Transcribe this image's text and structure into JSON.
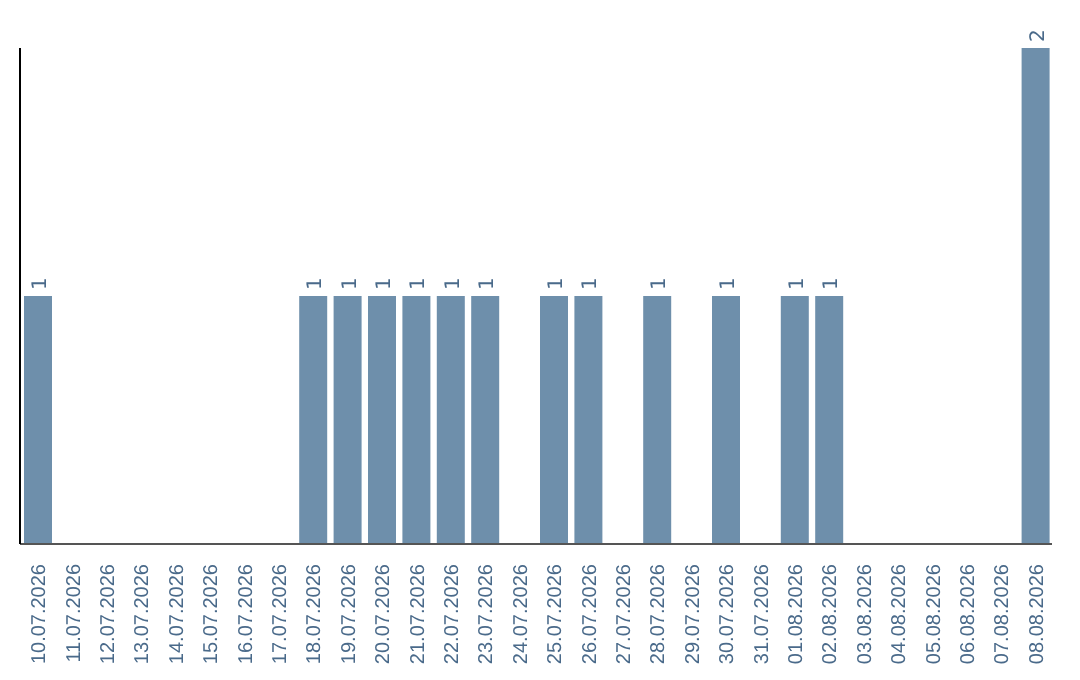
{
  "chart_data": {
    "type": "bar",
    "categories": [
      "10.07.2026",
      "11.07.2026",
      "12.07.2026",
      "13.07.2026",
      "14.07.2026",
      "15.07.2026",
      "16.07.2026",
      "17.07.2026",
      "18.07.2026",
      "19.07.2026",
      "20.07.2026",
      "21.07.2026",
      "22.07.2026",
      "23.07.2026",
      "24.07.2026",
      "25.07.2026",
      "26.07.2026",
      "27.07.2026",
      "28.07.2026",
      "29.07.2026",
      "30.07.2026",
      "31.07.2026",
      "01.08.2026",
      "02.08.2026",
      "03.08.2026",
      "04.08.2026",
      "05.08.2026",
      "06.08.2026",
      "07.08.2026",
      "08.08.2026"
    ],
    "values": [
      1,
      0,
      0,
      0,
      0,
      0,
      0,
      0,
      1,
      1,
      1,
      1,
      1,
      1,
      0,
      1,
      1,
      0,
      1,
      0,
      1,
      0,
      1,
      1,
      0,
      0,
      0,
      0,
      0,
      2
    ],
    "value_labels": [
      "1",
      null,
      null,
      null,
      null,
      null,
      null,
      null,
      "1",
      "1",
      "1",
      "1",
      "1",
      "1",
      null,
      "1",
      "1",
      null,
      "1",
      null,
      "1",
      null,
      "1",
      "1",
      null,
      null,
      null,
      null,
      null,
      "2"
    ],
    "color": "#6e8fab",
    "grid": false,
    "legend": false
  }
}
